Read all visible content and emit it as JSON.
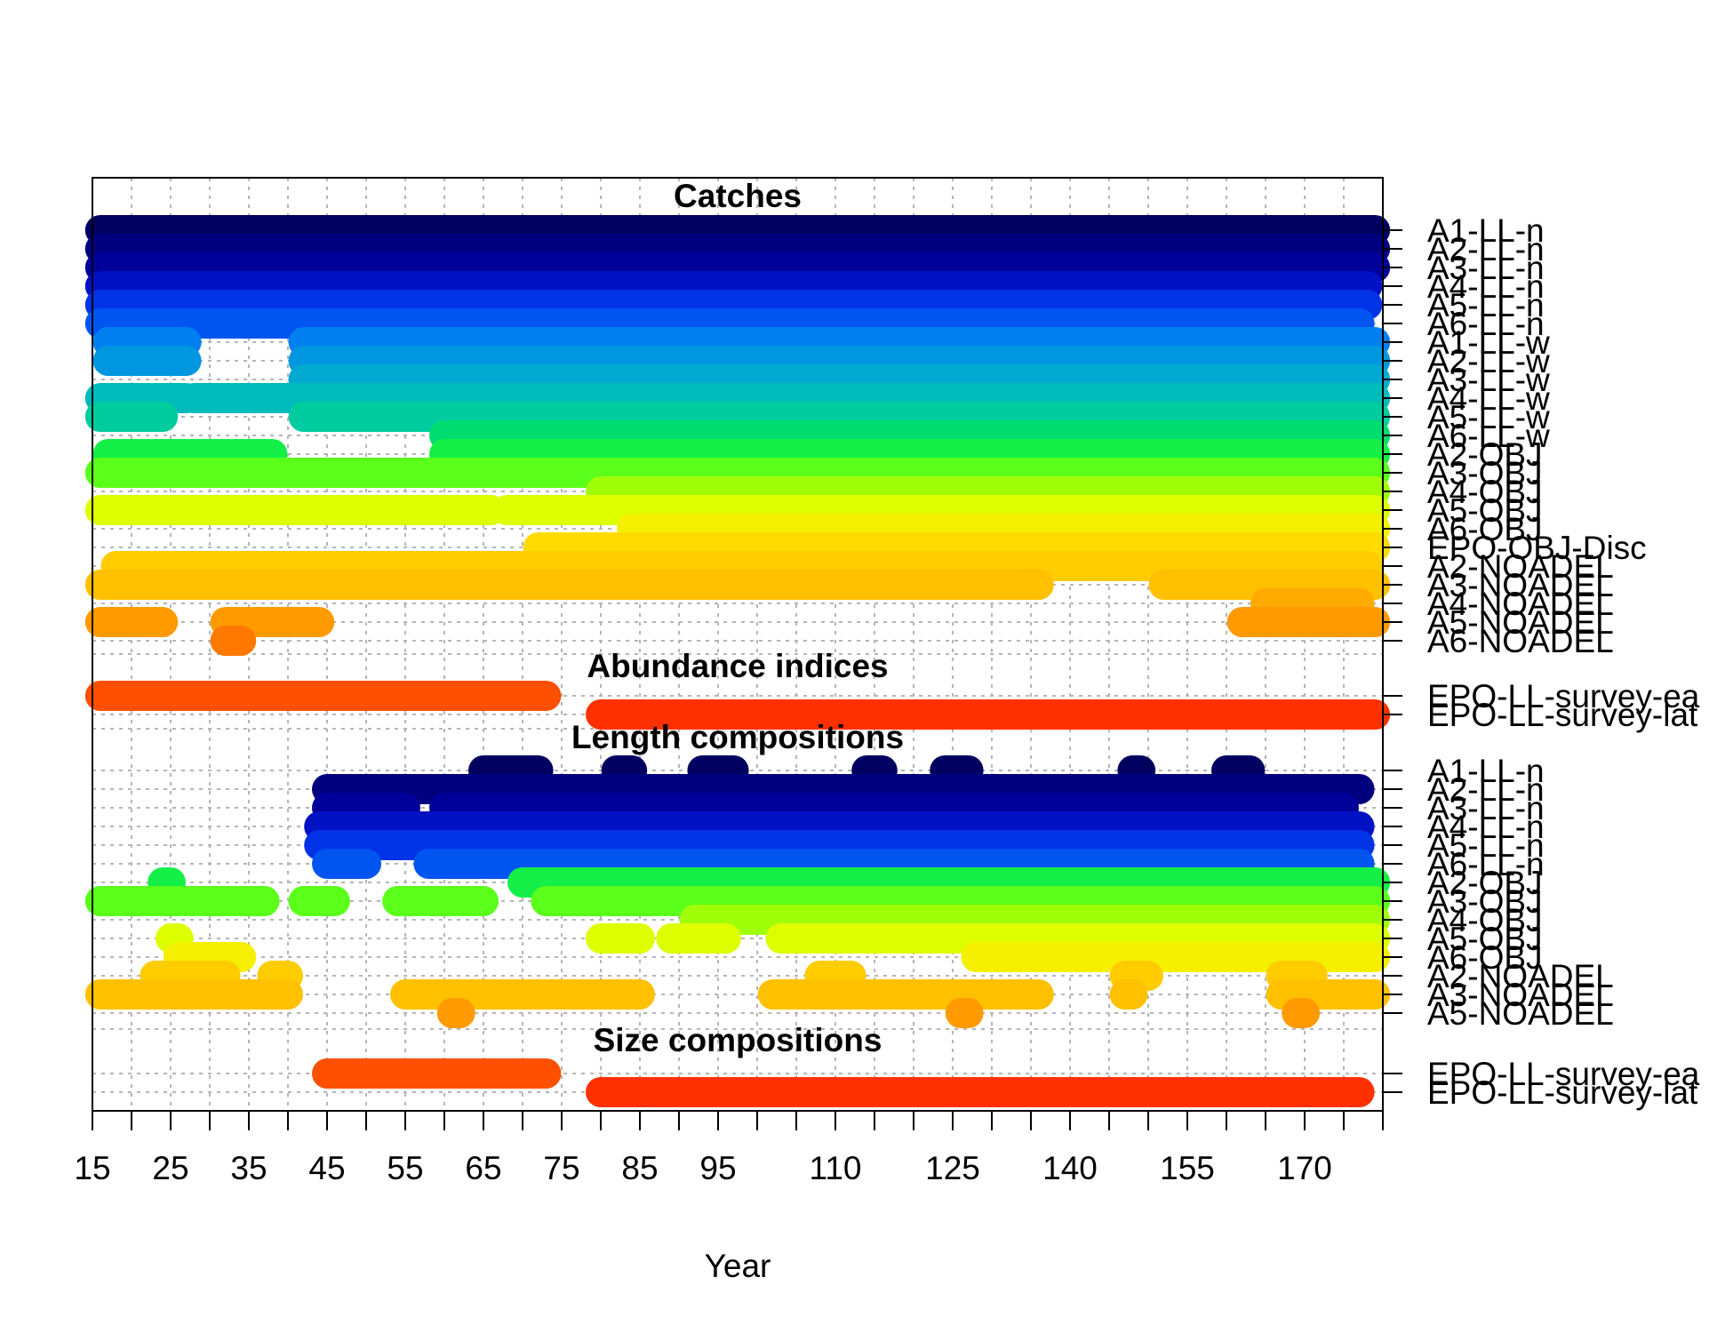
{
  "chart_data": {
    "type": "scatter",
    "title": "",
    "xlabel": "Year",
    "ylabel": "",
    "xlim": [
      15,
      180
    ],
    "x_tick_labels": [
      15,
      25,
      35,
      45,
      55,
      65,
      75,
      85,
      95,
      110,
      125,
      140,
      155,
      170
    ],
    "x_minor_ticks_every": 5,
    "grid": true,
    "sections": [
      {
        "title": "Catches",
        "rows": [
          {
            "label": "A1-LL-n",
            "color": "#000060",
            "ranges": [
              [
                16,
                179
              ]
            ]
          },
          {
            "label": "A2-LL-n",
            "color": "#00007E",
            "ranges": [
              [
                16,
                179
              ]
            ]
          },
          {
            "label": "A3-LL-n",
            "color": "#00009B",
            "ranges": [
              [
                16,
                179
              ]
            ]
          },
          {
            "label": "A4-LL-n",
            "color": "#0012C4",
            "ranges": [
              [
                16,
                178
              ]
            ]
          },
          {
            "label": "A5-LL-n",
            "color": "#0033E6",
            "ranges": [
              [
                16,
                178
              ]
            ]
          },
          {
            "label": "A6-LL-n",
            "color": "#0055F0",
            "ranges": [
              [
                16,
                177
              ]
            ]
          },
          {
            "label": "A1-LL-w",
            "color": "#0080F0",
            "ranges": [
              [
                17,
                27
              ],
              [
                42,
                179
              ]
            ]
          },
          {
            "label": "A2-LL-w",
            "color": "#0096E0",
            "ranges": [
              [
                17,
                27
              ],
              [
                42,
                179
              ]
            ]
          },
          {
            "label": "A3-LL-w",
            "color": "#00AAD0",
            "ranges": [
              [
                42,
                179
              ]
            ]
          },
          {
            "label": "A4-LL-w",
            "color": "#00BBBB",
            "ranges": [
              [
                16,
                27
              ],
              [
                28,
                179
              ]
            ]
          },
          {
            "label": "A5-LL-w",
            "color": "#00CCA0",
            "ranges": [
              [
                16,
                24
              ],
              [
                42,
                179
              ]
            ]
          },
          {
            "label": "A6-LL-w",
            "color": "#00DD70",
            "ranges": [
              [
                60,
                179
              ]
            ]
          },
          {
            "label": "A2-OBJ",
            "color": "#14F048",
            "ranges": [
              [
                17,
                38
              ],
              [
                60,
                179
              ]
            ]
          },
          {
            "label": "A3-OBJ",
            "color": "#5AFF1A",
            "ranges": [
              [
                16,
                179
              ]
            ]
          },
          {
            "label": "A4-OBJ",
            "color": "#A0FF08",
            "ranges": [
              [
                80,
                179
              ]
            ]
          },
          {
            "label": "A5-OBJ",
            "color": "#DDFF00",
            "ranges": [
              [
                16,
                66
              ],
              [
                68,
                179
              ]
            ]
          },
          {
            "label": "A6-OBJ",
            "color": "#F4F000",
            "ranges": [
              [
                84,
                179
              ]
            ]
          },
          {
            "label": "EPO-OBJ-Disc",
            "color": "#FFDA00",
            "ranges": [
              [
                72,
                179
              ]
            ]
          },
          {
            "label": "A2-NOADEL",
            "color": "#FFCC00",
            "ranges": [
              [
                18,
                178
              ]
            ]
          },
          {
            "label": "A3-NOADEL",
            "color": "#FFC000",
            "ranges": [
              [
                16,
                136
              ],
              [
                152,
                179
              ]
            ]
          },
          {
            "label": "A4-NOADEL",
            "color": "#FFAA00",
            "ranges": [
              [
                165,
                177
              ]
            ]
          },
          {
            "label": "A5-NOADEL",
            "color": "#FF9A00",
            "ranges": [
              [
                16,
                24
              ],
              [
                32,
                44
              ],
              [
                162,
                179
              ]
            ]
          },
          {
            "label": "A6-NOADEL",
            "color": "#FF7800",
            "ranges": [
              [
                32,
                34
              ]
            ]
          }
        ]
      },
      {
        "title": "Abundance indices",
        "rows": [
          {
            "label": "EPO-LL-survey-ea",
            "color": "#FF5000",
            "ranges": [
              [
                16,
                73
              ]
            ]
          },
          {
            "label": "EPO-LL-survey-lat",
            "color": "#FF3000",
            "ranges": [
              [
                80,
                179
              ]
            ]
          }
        ]
      },
      {
        "title": "Length compositions",
        "rows": [
          {
            "label": "A1-LL-n",
            "color": "#000060",
            "ranges": [
              [
                65,
                72
              ],
              [
                82,
                84
              ],
              [
                93,
                97
              ],
              [
                114,
                116
              ],
              [
                124,
                127
              ],
              [
                148,
                149
              ],
              [
                160,
                163
              ]
            ]
          },
          {
            "label": "A2-LL-n",
            "color": "#00007E",
            "ranges": [
              [
                45,
                177
              ]
            ]
          },
          {
            "label": "A3-LL-n",
            "color": "#00009B",
            "ranges": [
              [
                45,
                55
              ],
              [
                60,
                175
              ]
            ]
          },
          {
            "label": "A4-LL-n",
            "color": "#0012C4",
            "ranges": [
              [
                44,
                177
              ]
            ]
          },
          {
            "label": "A5-LL-n",
            "color": "#0033E6",
            "ranges": [
              [
                44,
                177
              ]
            ]
          },
          {
            "label": "A6-LL-n",
            "color": "#0055F0",
            "ranges": [
              [
                45,
                50
              ],
              [
                58,
                177
              ]
            ]
          },
          {
            "label": "A2-OBJ",
            "color": "#14F048",
            "ranges": [
              [
                24,
                25
              ],
              [
                70,
                179
              ]
            ]
          },
          {
            "label": "A3-OBJ",
            "color": "#5AFF1A",
            "ranges": [
              [
                16,
                37
              ],
              [
                42,
                46
              ],
              [
                54,
                65
              ],
              [
                73,
                179
              ]
            ]
          },
          {
            "label": "A4-OBJ",
            "color": "#A0FF08",
            "ranges": [
              [
                92,
                179
              ]
            ]
          },
          {
            "label": "A5-OBJ",
            "color": "#DDFF00",
            "ranges": [
              [
                25,
                26
              ],
              [
                80,
                85
              ],
              [
                89,
                96
              ],
              [
                103,
                179
              ]
            ]
          },
          {
            "label": "A6-OBJ",
            "color": "#F4F000",
            "ranges": [
              [
                26,
                34
              ],
              [
                128,
                179
              ]
            ]
          },
          {
            "label": "A2-NOADEL",
            "color": "#FFCC00",
            "ranges": [
              [
                23,
                32
              ],
              [
                38,
                40
              ],
              [
                108,
                112
              ],
              [
                147,
                150
              ],
              [
                167,
                171
              ]
            ]
          },
          {
            "label": "A3-NOADEL",
            "color": "#FFC000",
            "ranges": [
              [
                16,
                40
              ],
              [
                55,
                85
              ],
              [
                102,
                136
              ],
              [
                147,
                148
              ],
              [
                167,
                179
              ]
            ]
          },
          {
            "label": "A5-NOADEL",
            "color": "#FF9A00",
            "ranges": [
              [
                61,
                62
              ],
              [
                126,
                127
              ],
              [
                169,
                170
              ]
            ]
          }
        ]
      },
      {
        "title": "Size compositions",
        "rows": [
          {
            "label": "EPO-LL-survey-ea",
            "color": "#FF5000",
            "ranges": [
              [
                45,
                73
              ]
            ]
          },
          {
            "label": "EPO-LL-survey-lat",
            "color": "#FF3000",
            "ranges": [
              [
                80,
                177
              ]
            ]
          }
        ]
      }
    ]
  }
}
